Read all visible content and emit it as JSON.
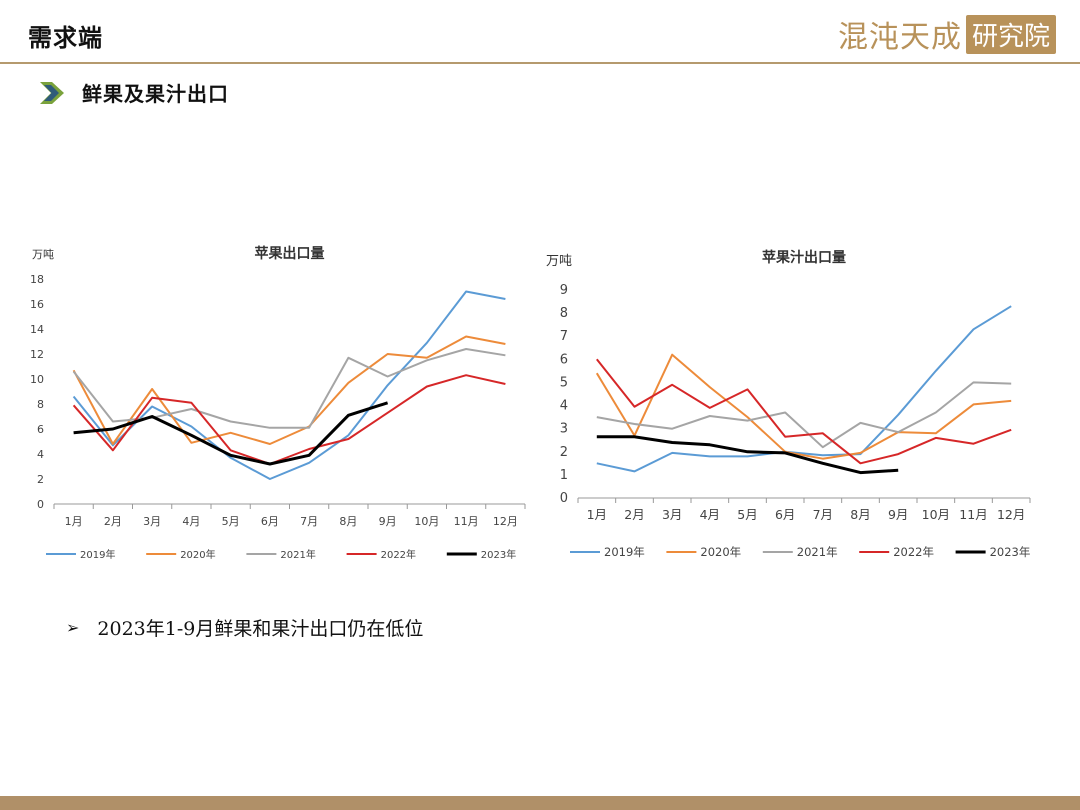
{
  "header": {
    "title": "需求端",
    "brand_text": "混沌天成",
    "brand_box": "研究院"
  },
  "section": {
    "title": "鲜果及果汁出口",
    "icon": "chevron-right-icon",
    "icon_color": "#7aa23c"
  },
  "bullet": {
    "text": "2023年1-9月鲜果和果汁出口仍在低位",
    "icon": "arrow-right-icon"
  },
  "colors": {
    "2019年": "#5b9bd5",
    "2020年": "#ed8b3a",
    "2021年": "#a5a5a5",
    "2022年": "#d62728",
    "2023年": "#000000"
  },
  "chart_data": [
    {
      "type": "line",
      "title": "苹果出口量",
      "ylabel": "万吨",
      "ylim": [
        0,
        18
      ],
      "yticks": [
        0,
        2,
        4,
        6,
        8,
        10,
        12,
        14,
        16,
        18
      ],
      "categories": [
        "1月",
        "2月",
        "3月",
        "4月",
        "5月",
        "6月",
        "7月",
        "8月",
        "9月",
        "10月",
        "11月",
        "12月"
      ],
      "legend_position": "bottom",
      "series": [
        {
          "name": "2019年",
          "values": [
            8.6,
            4.7,
            7.8,
            6.2,
            3.7,
            2.0,
            3.3,
            5.5,
            9.5,
            12.9,
            17.0,
            16.4
          ]
        },
        {
          "name": "2020年",
          "values": [
            10.7,
            4.8,
            9.2,
            4.9,
            5.7,
            4.8,
            6.2,
            9.7,
            12.0,
            11.7,
            13.4,
            12.8
          ]
        },
        {
          "name": "2021年",
          "values": [
            10.6,
            6.6,
            6.9,
            7.6,
            6.6,
            6.1,
            6.1,
            11.7,
            10.2,
            11.5,
            12.4,
            11.9
          ]
        },
        {
          "name": "2022年",
          "values": [
            7.9,
            4.3,
            8.5,
            8.1,
            4.3,
            3.2,
            4.4,
            5.2,
            7.3,
            9.4,
            10.3,
            9.6
          ]
        },
        {
          "name": "2023年",
          "values": [
            5.7,
            6.0,
            7.0,
            5.5,
            3.9,
            3.2,
            3.9,
            7.1,
            8.1,
            null,
            null,
            null
          ]
        }
      ]
    },
    {
      "type": "line",
      "title": "苹果汁出口量",
      "ylabel": "万吨",
      "ylim": [
        0,
        9
      ],
      "yticks": [
        0,
        1,
        2,
        3,
        4,
        5,
        6,
        7,
        8,
        9
      ],
      "categories": [
        "1月",
        "2月",
        "3月",
        "4月",
        "5月",
        "6月",
        "7月",
        "8月",
        "9月",
        "10月",
        "11月",
        "12月"
      ],
      "legend_position": "bottom",
      "series": [
        {
          "name": "2019年",
          "values": [
            1.5,
            1.15,
            1.95,
            1.8,
            1.8,
            2.0,
            1.85,
            1.9,
            3.6,
            5.5,
            7.3,
            8.3
          ]
        },
        {
          "name": "2020年",
          "values": [
            5.4,
            2.7,
            6.2,
            4.8,
            3.5,
            2.0,
            1.7,
            1.95,
            2.85,
            2.8,
            4.05,
            4.2
          ]
        },
        {
          "name": "2021年",
          "values": [
            3.5,
            3.2,
            3.0,
            3.55,
            3.35,
            3.7,
            2.2,
            3.25,
            2.85,
            3.7,
            5.0,
            4.95
          ]
        },
        {
          "name": "2022年",
          "values": [
            6.0,
            3.95,
            4.9,
            3.9,
            4.7,
            2.65,
            2.8,
            1.5,
            1.9,
            2.6,
            2.35,
            2.95
          ]
        },
        {
          "name": "2023年",
          "values": [
            2.65,
            2.65,
            2.4,
            2.3,
            2.0,
            1.95,
            1.5,
            1.1,
            1.2,
            null,
            null,
            null
          ]
        }
      ]
    }
  ]
}
